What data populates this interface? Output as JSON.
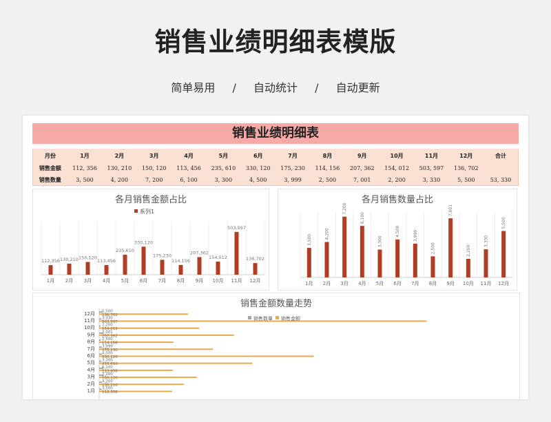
{
  "page": {
    "title": "销售业绩明细表模版",
    "subtitle": [
      "简单易用",
      "/",
      "自动统计",
      "/",
      "自动更新"
    ],
    "colors": {
      "bar": "#b13d24",
      "bar2": "#e8a94b",
      "banner": "#f7a9a6",
      "table_bg": "#fbe0d4"
    }
  },
  "sheet": {
    "banner": "销售业绩明细表",
    "table": {
      "headers": [
        "月份",
        "1月",
        "2月",
        "3月",
        "4月",
        "5月",
        "6月",
        "7月",
        "8月",
        "9月",
        "10月",
        "11月",
        "12月",
        "合计"
      ],
      "rows": [
        {
          "label": "销售金额",
          "values": [
            "112, 356",
            "130, 210",
            "150, 120",
            "113, 456",
            "235, 610",
            "330, 120",
            "175, 230",
            "114, 156",
            "207, 362",
            "154, 012",
            "503, 597",
            "136, 702",
            ""
          ]
        },
        {
          "label": "销售数量",
          "values": [
            "3, 500",
            "4, 200",
            "7, 200",
            "6, 100",
            "3, 300",
            "4, 500",
            "3, 999",
            "2, 500",
            "7, 001",
            "2, 200",
            "3, 330",
            "5, 500",
            "53, 330"
          ]
        }
      ]
    }
  },
  "chart_data": [
    {
      "type": "bar",
      "title": "各月销售金额占比",
      "legend": [
        "系列1"
      ],
      "legend_position": "top",
      "categories": [
        "1月",
        "2月",
        "3月",
        "4月",
        "5月",
        "6月",
        "7月",
        "8月",
        "9月",
        "10月",
        "11月",
        "12月"
      ],
      "values": [
        112356,
        130210,
        150120,
        113456,
        235610,
        330120,
        175230,
        114156,
        207362,
        154012,
        503597,
        136702
      ],
      "data_labels": [
        "112,356",
        "130,210",
        "150,120",
        "113,456",
        "235,610",
        "330,120",
        "175,230",
        "114,156",
        "207,362",
        "154,012",
        "503,597",
        "136,702"
      ],
      "ylim": [
        0,
        600000
      ]
    },
    {
      "type": "bar",
      "title": "各月销售数量占比",
      "categories": [
        "1月",
        "2月",
        "3月",
        "4月",
        "5月",
        "6月",
        "7月",
        "8月",
        "9月",
        "10月",
        "11月",
        "12月"
      ],
      "values": [
        3500,
        4200,
        7200,
        6100,
        3300,
        4500,
        3999,
        2500,
        7001,
        2200,
        3330,
        5500
      ],
      "data_labels": [
        "3,500",
        "4,200",
        "7,200",
        "6,100",
        "3,300",
        "4,500",
        "3,999",
        "2,500",
        "7,001",
        "2,200",
        "3,330",
        "5,500"
      ],
      "ylim": [
        0,
        7500
      ]
    },
    {
      "type": "bar",
      "orientation": "horizontal",
      "title": "销售金额数量走势",
      "legend_position": "top-center",
      "categories": [
        "1月",
        "2月",
        "3月",
        "4月",
        "5月",
        "6月",
        "7月",
        "8月",
        "9月",
        "10月",
        "11月",
        "12月"
      ],
      "series": [
        {
          "name": "销售数量",
          "values": [
            3500,
            4200,
            7200,
            6100,
            3300,
            4500,
            3999,
            2500,
            7001,
            2200,
            3330,
            5500
          ]
        },
        {
          "name": "销售金额",
          "values": [
            112356,
            130210,
            150120,
            113456,
            235610,
            330120,
            175230,
            114156,
            207362,
            154012,
            503597,
            136702
          ]
        }
      ],
      "xlim": [
        0,
        640000
      ]
    }
  ]
}
